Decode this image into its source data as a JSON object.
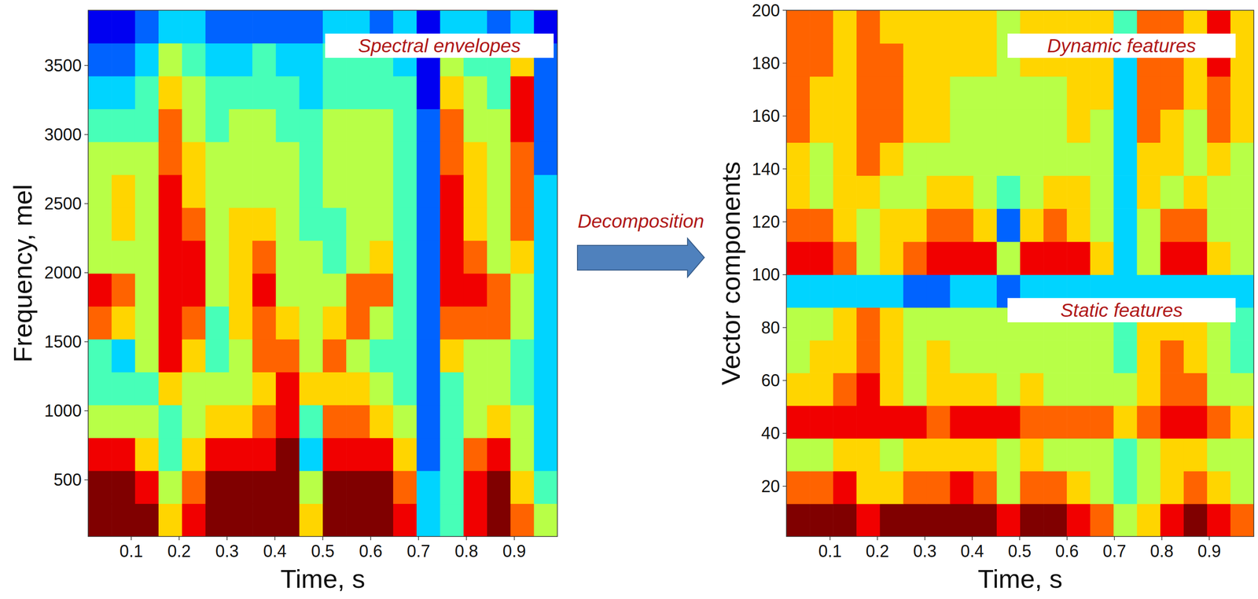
{
  "chart_data": [
    {
      "type": "heatmap",
      "x_label": "Time, s",
      "y_label": "Frequency, mel",
      "annotations": [
        "Spectral envelopes"
      ],
      "xlim": [
        0.01,
        0.99
      ],
      "ylim": [
        90,
        3900
      ],
      "xticks": [
        0.1,
        0.2,
        0.3,
        0.4,
        0.5,
        0.6,
        0.7,
        0.8,
        0.9
      ],
      "yticks": [
        500,
        1000,
        1500,
        2000,
        2500,
        3000,
        3500
      ],
      "zlim": [
        0,
        9
      ],
      "cells": [
        [
          9,
          9,
          9,
          6,
          8,
          9,
          9,
          9,
          9,
          6,
          9,
          9,
          9,
          8,
          3,
          4,
          8,
          9,
          7,
          5
        ],
        [
          9,
          9,
          8,
          5,
          7,
          9,
          9,
          9,
          9,
          5,
          9,
          9,
          9,
          7,
          3,
          4,
          8,
          9,
          6,
          4
        ],
        [
          8,
          8,
          6,
          4,
          6,
          8,
          8,
          8,
          9,
          3,
          8,
          8,
          8,
          6,
          2,
          4,
          7,
          8,
          5,
          3
        ],
        [
          5,
          5,
          5,
          4,
          5,
          6,
          6,
          7,
          8,
          4,
          7,
          7,
          6,
          5,
          2,
          4,
          5,
          6,
          5,
          3
        ],
        [
          4,
          4,
          4,
          6,
          5,
          5,
          5,
          6,
          8,
          6,
          6,
          6,
          5,
          4,
          2,
          4,
          5,
          5,
          4,
          3
        ],
        [
          4,
          3,
          5,
          8,
          6,
          4,
          5,
          7,
          7,
          5,
          7,
          5,
          4,
          4,
          2,
          6,
          5,
          5,
          4,
          3
        ],
        [
          7,
          6,
          5,
          8,
          7,
          4,
          6,
          7,
          6,
          5,
          6,
          7,
          5,
          4,
          2,
          7,
          7,
          7,
          5,
          3
        ],
        [
          8,
          7,
          5,
          8,
          8,
          5,
          6,
          8,
          5,
          5,
          5,
          7,
          7,
          4,
          2,
          8,
          8,
          7,
          5,
          3
        ],
        [
          5,
          5,
          5,
          8,
          8,
          5,
          6,
          7,
          5,
          5,
          4,
          5,
          6,
          4,
          2,
          8,
          7,
          5,
          6,
          3
        ],
        [
          5,
          6,
          5,
          8,
          7,
          5,
          6,
          6,
          5,
          4,
          4,
          5,
          5,
          4,
          2,
          8,
          6,
          5,
          7,
          3
        ],
        [
          5,
          6,
          5,
          8,
          6,
          5,
          5,
          5,
          5,
          4,
          5,
          5,
          5,
          4,
          2,
          8,
          6,
          5,
          7,
          3
        ],
        [
          5,
          5,
          5,
          7,
          6,
          5,
          5,
          5,
          5,
          4,
          5,
          5,
          5,
          4,
          2,
          7,
          6,
          5,
          7,
          2
        ],
        [
          4,
          4,
          4,
          7,
          5,
          4,
          5,
          5,
          4,
          4,
          5,
          5,
          5,
          4,
          2,
          7,
          5,
          5,
          8,
          2
        ],
        [
          3,
          3,
          4,
          6,
          5,
          4,
          4,
          4,
          4,
          3,
          4,
          4,
          4,
          4,
          1,
          6,
          5,
          4,
          8,
          2
        ],
        [
          2,
          2,
          3,
          5,
          4,
          3,
          3,
          4,
          3,
          3,
          4,
          4,
          4,
          3,
          1,
          5,
          4,
          4,
          6,
          2
        ],
        [
          1,
          1,
          2,
          3,
          3,
          2,
          2,
          2,
          2,
          2,
          3,
          3,
          2,
          3,
          1,
          3,
          3,
          2,
          3,
          1
        ]
      ]
    },
    {
      "type": "heatmap",
      "x_label": "Time, s",
      "y_label": "Vector components",
      "xlim": [
        0.008,
        0.994
      ],
      "ylim": [
        1,
        200
      ],
      "xticks": [
        0.1,
        0.2,
        0.3,
        0.4,
        0.5,
        0.6,
        0.7,
        0.8,
        0.9
      ],
      "yticks": [
        20,
        40,
        60,
        80,
        100,
        120,
        140,
        160,
        180,
        200
      ],
      "zlim": [
        0,
        9
      ],
      "series": [
        {
          "name": "Static features",
          "ylim": [
            1,
            100
          ],
          "cells": [
            [
              9,
              9,
              9,
              8,
              9,
              9,
              9,
              9,
              9,
              8,
              9,
              9,
              8,
              7,
              5,
              6,
              8,
              9,
              8,
              7
            ],
            [
              7,
              7,
              8,
              6,
              6,
              7,
              7,
              8,
              7,
              5,
              7,
              7,
              6,
              5,
              4,
              5,
              6,
              7,
              6,
              5
            ],
            [
              5,
              5,
              6,
              6,
              5,
              6,
              6,
              6,
              6,
              5,
              6,
              5,
              5,
              5,
              4,
              5,
              6,
              6,
              5,
              5
            ],
            [
              8,
              8,
              8,
              8,
              8,
              8,
              7,
              8,
              8,
              8,
              7,
              7,
              7,
              7,
              6,
              7,
              8,
              8,
              7,
              6
            ],
            [
              6,
              6,
              7,
              8,
              6,
              5,
              6,
              6,
              6,
              5,
              6,
              5,
              5,
              5,
              5,
              6,
              7,
              7,
              5,
              5
            ],
            [
              5,
              6,
              6,
              7,
              6,
              5,
              6,
              5,
              5,
              5,
              5,
              5,
              5,
              5,
              4,
              6,
              7,
              6,
              5,
              4
            ],
            [
              5,
              5,
              6,
              7,
              6,
              5,
              5,
              5,
              5,
              5,
              5,
              5,
              5,
              5,
              4,
              6,
              6,
              6,
              5,
              4
            ],
            [
              3,
              3,
              3,
              3,
              3,
              2,
              2,
              3,
              3,
              2,
              3,
              3,
              3,
              3,
              3,
              3,
              3,
              3,
              3,
              3
            ]
          ]
        },
        {
          "name": "Dynamic features",
          "ylim": [
            100,
            200
          ],
          "cells": [
            [
              8,
              8,
              7,
              5,
              6,
              7,
              8,
              8,
              8,
              5,
              8,
              8,
              8,
              6,
              3,
              5,
              8,
              8,
              6,
              5
            ],
            [
              7,
              7,
              6,
              5,
              6,
              6,
              7,
              7,
              6,
              2,
              6,
              7,
              6,
              5,
              3,
              5,
              7,
              7,
              5,
              5
            ],
            [
              6,
              5,
              6,
              6,
              5,
              5,
              6,
              6,
              5,
              4,
              5,
              6,
              6,
              5,
              3,
              6,
              5,
              6,
              5,
              5
            ],
            [
              6,
              5,
              6,
              7,
              6,
              5,
              5,
              5,
              5,
              5,
              5,
              5,
              5,
              5,
              3,
              6,
              6,
              5,
              6,
              5
            ],
            [
              7,
              6,
              6,
              7,
              7,
              6,
              6,
              5,
              5,
              5,
              5,
              5,
              6,
              5,
              3,
              7,
              6,
              5,
              7,
              6
            ],
            [
              7,
              6,
              6,
              7,
              7,
              6,
              6,
              5,
              5,
              5,
              5,
              5,
              6,
              6,
              3,
              7,
              7,
              6,
              7,
              6
            ],
            [
              7,
              7,
              6,
              7,
              7,
              6,
              6,
              6,
              6,
              5,
              6,
              6,
              6,
              6,
              3,
              7,
              7,
              6,
              8,
              6
            ],
            [
              7,
              7,
              6,
              7,
              6,
              6,
              6,
              6,
              6,
              5,
              6,
              6,
              6,
              6,
              4,
              7,
              7,
              6,
              8,
              6
            ]
          ]
        }
      ]
    }
  ],
  "arrow": {
    "label": "Decomposition"
  }
}
